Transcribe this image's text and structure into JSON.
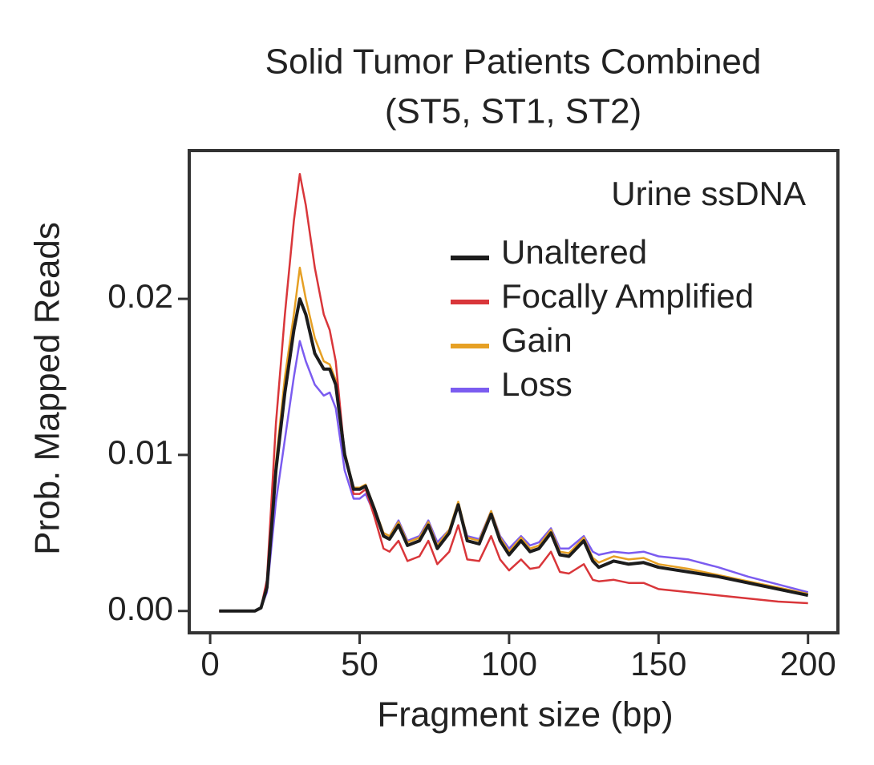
{
  "chart_data": {
    "type": "line",
    "title": "Solid Tumor Patients Combined",
    "subtitle": "(ST5, ST1, ST2)",
    "x_label": "Fragment size (bp)",
    "y_label": "Prob. Mapped Reads",
    "legend_title": "Urine ssDNA",
    "x": [
      3,
      10,
      15,
      17,
      19,
      22,
      25,
      28,
      30,
      32,
      35,
      38,
      40,
      42,
      45,
      48,
      50,
      52,
      55,
      58,
      60,
      63,
      66,
      70,
      73,
      76,
      80,
      83,
      86,
      90,
      94,
      97,
      100,
      104,
      107,
      110,
      114,
      117,
      120,
      125,
      128,
      130,
      135,
      140,
      145,
      150,
      160,
      170,
      180,
      190,
      200
    ],
    "series": [
      {
        "name": "Unaltered",
        "color": "#1c1c1c",
        "values": [
          0,
          0,
          0,
          0.0002,
          0.0015,
          0.009,
          0.014,
          0.018,
          0.02,
          0.019,
          0.0165,
          0.0155,
          0.0155,
          0.0145,
          0.01,
          0.0078,
          0.0078,
          0.008,
          0.0065,
          0.0048,
          0.0046,
          0.0055,
          0.0042,
          0.0045,
          0.0055,
          0.004,
          0.005,
          0.0068,
          0.0045,
          0.0043,
          0.0062,
          0.0045,
          0.0036,
          0.0045,
          0.0038,
          0.004,
          0.005,
          0.0036,
          0.0035,
          0.0045,
          0.0032,
          0.0028,
          0.0032,
          0.003,
          0.0031,
          0.0028,
          0.0025,
          0.0022,
          0.0018,
          0.0014,
          0.001
        ]
      },
      {
        "name": "Focally Amplified",
        "color": "#d9363a",
        "values": [
          0,
          0,
          0,
          0.0002,
          0.002,
          0.012,
          0.019,
          0.025,
          0.028,
          0.026,
          0.022,
          0.019,
          0.018,
          0.016,
          0.01,
          0.0075,
          0.0075,
          0.0078,
          0.006,
          0.004,
          0.0038,
          0.0045,
          0.0032,
          0.0035,
          0.0045,
          0.003,
          0.0038,
          0.0055,
          0.0033,
          0.0032,
          0.0048,
          0.0033,
          0.0026,
          0.0033,
          0.0027,
          0.0028,
          0.0038,
          0.0025,
          0.0024,
          0.003,
          0.002,
          0.0019,
          0.002,
          0.0018,
          0.0018,
          0.0014,
          0.0012,
          0.001,
          0.0008,
          0.0006,
          0.0005
        ]
      },
      {
        "name": "Gain",
        "color": "#e6a024",
        "values": [
          0,
          0,
          0,
          0.0002,
          0.0016,
          0.0095,
          0.015,
          0.019,
          0.022,
          0.02,
          0.0175,
          0.016,
          0.0158,
          0.0148,
          0.0102,
          0.0079,
          0.0079,
          0.0081,
          0.0066,
          0.005,
          0.0048,
          0.0057,
          0.0044,
          0.0047,
          0.0057,
          0.0042,
          0.0052,
          0.007,
          0.0047,
          0.0045,
          0.0064,
          0.0047,
          0.0038,
          0.0047,
          0.004,
          0.0042,
          0.0052,
          0.0038,
          0.0037,
          0.0047,
          0.0034,
          0.0031,
          0.0035,
          0.0033,
          0.0034,
          0.003,
          0.0027,
          0.0023,
          0.0019,
          0.0015,
          0.0011
        ]
      },
      {
        "name": "Loss",
        "color": "#7b5cf0",
        "values": [
          0,
          0,
          0,
          0.0002,
          0.0012,
          0.007,
          0.011,
          0.015,
          0.0173,
          0.016,
          0.0145,
          0.0138,
          0.014,
          0.013,
          0.009,
          0.0072,
          0.0072,
          0.0075,
          0.0062,
          0.005,
          0.0048,
          0.0058,
          0.0045,
          0.0048,
          0.0058,
          0.0044,
          0.0052,
          0.0068,
          0.0048,
          0.0046,
          0.0064,
          0.0048,
          0.004,
          0.0048,
          0.0042,
          0.0044,
          0.0053,
          0.004,
          0.004,
          0.0048,
          0.0038,
          0.0036,
          0.0038,
          0.0037,
          0.0038,
          0.0035,
          0.0033,
          0.0028,
          0.0022,
          0.0017,
          0.0012
        ]
      }
    ],
    "xlim": [
      -7,
      210
    ],
    "ylim": [
      -0.0014,
      0.0295
    ],
    "xticks": [
      0,
      50,
      100,
      150,
      200
    ],
    "yticks": [
      {
        "value": 0,
        "label": "0.00"
      },
      {
        "value": 0.01,
        "label": "0.01"
      },
      {
        "value": 0.02,
        "label": "0.02"
      }
    ],
    "grid": false,
    "legend": "upper right"
  }
}
